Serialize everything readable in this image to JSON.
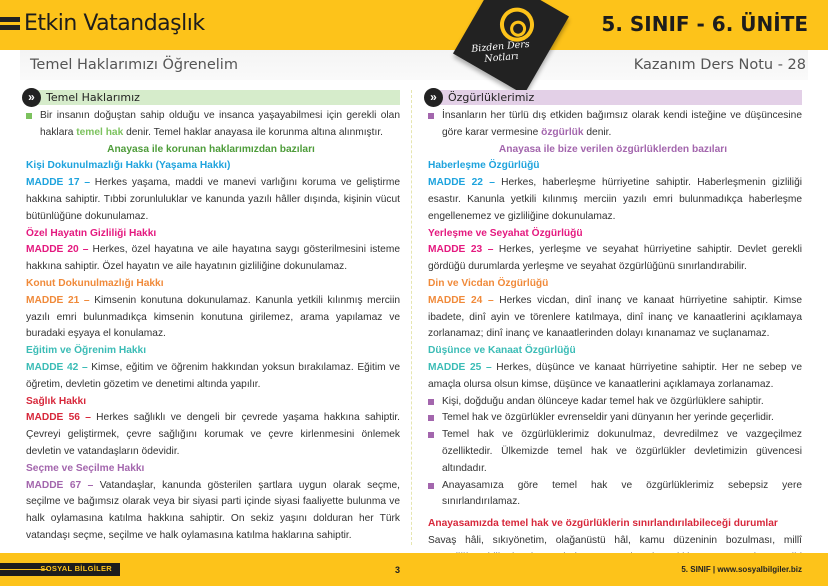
{
  "header": {
    "title": "Etkin Vatandaşlık",
    "unit": "5. SINIF - 6. ÜNİTE",
    "subtitle": "Temel Haklarımızı Öğrenelim",
    "note": "Kazanım Ders Notu - 28",
    "badge_text": "Bizden Ders Notları"
  },
  "colors": {
    "brand": "#fdc31a",
    "green": "#4e9c3a",
    "purple": "#a366ad",
    "blue": "#1ea3dd",
    "magenta": "#e4197f",
    "orange": "#f08a3a",
    "teal": "#3bbcb6",
    "red": "#d7283b"
  },
  "left": {
    "section": "Temel Haklarımız",
    "intro": [
      "Bir insanın doğuştan sahip olduğu ve insanca yaşayabilmesi için gerekli olan haklara ",
      "temel hak",
      " denir. Temel haklar anayasa ile korunma altına alınmıştır."
    ],
    "subheading": "Anayasa ile korunan haklarımızdan bazıları",
    "items": [
      {
        "heading": "Kişi Dokunulmazlığı Hakkı (Yaşama Hakkı)",
        "madde": "MADDE 17 –",
        "text": " Herkes yaşama, maddi ve manevi varlığını koruma ve geliştirme hakkına sahiptir. Tıbbi zorunluluklar ve kanunda yazılı hâller dışında, kişinin vücut bütünlüğüne dokunulamaz."
      },
      {
        "heading": "Özel Hayatın Gizliliği Hakkı",
        "madde": "MADDE 20 –",
        "text": " Herkes, özel hayatına ve aile hayatına saygı gösterilmesini isteme hakkına sahiptir. Özel hayatın ve aile hayatının gizliliğine dokunulamaz."
      },
      {
        "heading": "Konut Dokunulmazlığı Hakkı",
        "madde": "MADDE 21 –",
        "text": " Kimsenin konutuna dokunulamaz. Kanunla yetkili kılınmış merciin yazılı emri bulunmadıkça kimsenin konutuna girilemez, arama yapılamaz ve buradaki eşyaya el konulamaz."
      },
      {
        "heading": "Eğitim ve Öğrenim Hakkı",
        "madde": "MADDE 42 –",
        "text": " Kimse, eğitim ve öğrenim hakkından yoksun bırakılamaz. Eğitim ve öğretim, devletin gözetim ve denetimi altında yapılır."
      },
      {
        "heading": "Sağlık Hakkı",
        "madde": "MADDE 56 –",
        "text": " Herkes sağlıklı ve dengeli bir çevrede yaşama hakkına sahiptir. Çevreyi geliştirmek, çevre sağlığını korumak ve çevre kirlenmesini önlemek devletin ve vatandaşların ödevidir."
      },
      {
        "heading": "Seçme ve Seçilme Hakkı",
        "madde": "MADDE 67 –",
        "text": " Vatandaşlar, kanunda gösterilen şartlara uygun olarak seçme, seçilme ve bağımsız olarak veya bir siyasi parti içinde siyasi faaliyette bulunma ve halk oylamasına katılma hakkına sahiptir. On sekiz yaşını dolduran her Türk vatandaşı seçme, seçilme ve halk oylamasına katılma haklarına sahiptir."
      }
    ]
  },
  "right": {
    "section": "Özgürlüklerimiz",
    "intro": [
      "İnsanların her türlü dış etkiden bağımsız olarak kendi isteğine ve düşüncesine göre karar vermesine ",
      "özgürlük",
      " denir."
    ],
    "subheading": "Anayasa ile bize verilen özgürlüklerden bazıları",
    "items": [
      {
        "heading": "Haberleşme Özgürlüğü",
        "madde": "MADDE 22 –",
        "text": " Herkes, haberleşme hürriyetine sahiptir. Haberleşmenin gizliliği esastır. Kanunla yetkili kılınmış merciin yazılı emri bulunmadıkça haberleşme engellenemez ve gizliliğine dokunulamaz."
      },
      {
        "heading": "Yerleşme ve Seyahat Özgürlüğü",
        "madde": "MADDE 23 –",
        "text": " Herkes, yerleşme ve seyahat hürriyetine sahiptir. Devlet gerekli gördüğü durumlarda yerleşme ve seyahat özgürlüğünü sınırlandırabilir."
      },
      {
        "heading": "Din ve Vicdan Özgürlüğü",
        "madde": "MADDE 24 –",
        "text": " Herkes vicdan, dinî inanç ve kanaat hürriyetine sahiptir. Kimse ibadete, dinî ayin ve törenlere katılmaya, dinî inanç ve kanaatlerini açıklamaya zorlanamaz; dinî inanç ve kanaatlerinden dolayı kınanamaz ve suçlanamaz."
      },
      {
        "heading": "Düşünce ve Kanaat Özgürlüğü",
        "madde": "MADDE 25 –",
        "text": " Herkes, düşünce ve kanaat hürriyetine sahiptir. Her ne sebep ve amaçla olursa olsun kimse, düşünce ve kanaatlerini açıklamaya zorlanamaz."
      }
    ],
    "bullets": [
      "Kişi, doğduğu andan ölünceye kadar temel hak ve özgürlüklere sahiptir.",
      "Temel hak ve özgürlükler evrenseldir yani dünyanın her yerinde geçerlidir.",
      "Temel hak ve özgürlüklerimiz dokunulmaz, devredilmez ve vazgeçilmez özelliktedir. Ülkemizde temel hak ve özgürlükler devletimizin güvencesi altındadır.",
      "Anayasamıza göre temel hak ve özgürlüklerimiz sebepsiz yere sınırlandırılamaz."
    ],
    "limits_heading": "Anayasamızda temel hak ve özgürlüklerin sınırlandırılabileceği durumlar",
    "limits_text": "Savaş hâli, sıkıyönetim, olağanüstü hâl, kamu düzeninin bozulması, millî güvenliğin tehlikede olması, bulaşıcı ve salgın hastalıkların ortaya çıkması gibi durumlardır."
  },
  "footer": {
    "subject": "SOSYAL BİLGİLER",
    "page": "3",
    "right": "5. SINIF | www.sosyalbilgiler.biz"
  }
}
